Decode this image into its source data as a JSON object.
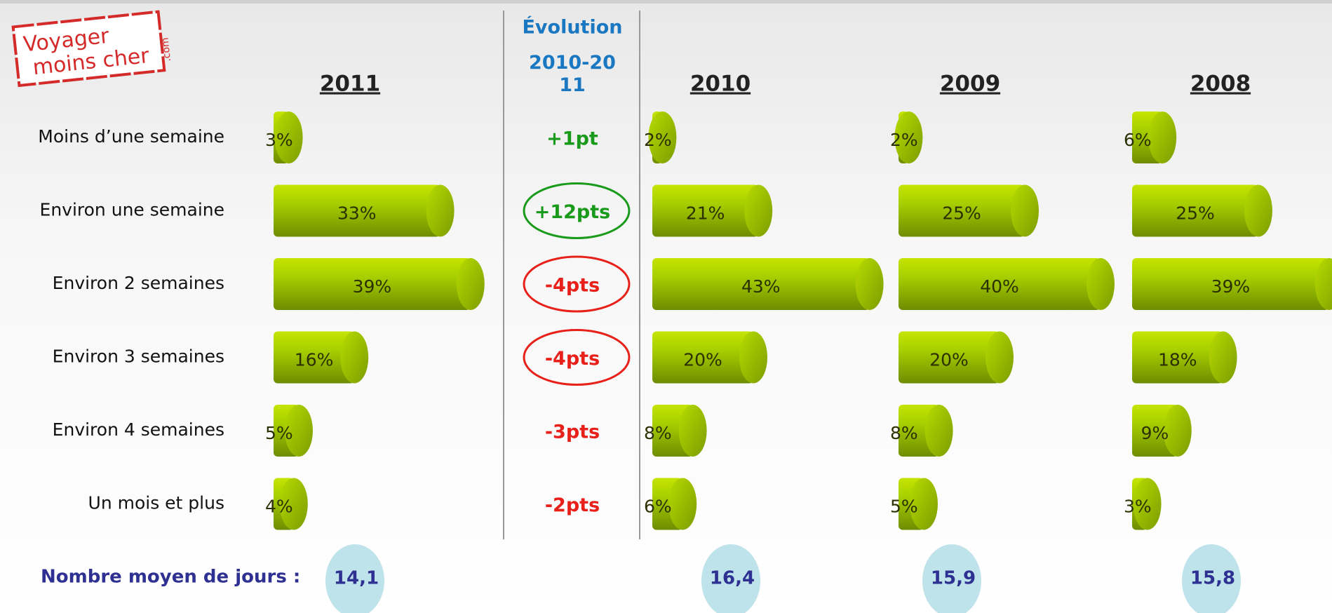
{
  "logo": {
    "line1": "Voyager",
    "line2": "moins cher",
    "suffix": ".com"
  },
  "chart_data": {
    "type": "bar",
    "orientation": "horizontal",
    "color": "#a8d000",
    "categories": [
      "Moins d’une semaine",
      "Environ une semaine",
      "Environ 2 semaines",
      "Environ 3 semaines",
      "Environ 4 semaines",
      "Un mois et plus"
    ],
    "series": [
      {
        "name": "2011",
        "values": [
          3,
          33,
          39,
          16,
          5,
          4
        ],
        "value_labels": [
          "3%",
          "33%",
          "39%",
          "16%",
          "5%",
          "4%"
        ],
        "average": 14.1,
        "average_label": "14,1"
      },
      {
        "name": "2010",
        "values": [
          2,
          21,
          43,
          20,
          8,
          6
        ],
        "value_labels": [
          "2%",
          "21%",
          "43%",
          "20%",
          "8%",
          "6%"
        ],
        "average": 16.4,
        "average_label": "16,4"
      },
      {
        "name": "2009",
        "values": [
          2,
          25,
          40,
          20,
          8,
          5
        ],
        "value_labels": [
          "2%",
          "25%",
          "40%",
          "20%",
          "8%",
          "5%"
        ],
        "average": 15.9,
        "average_label": "15,9"
      },
      {
        "name": "2008",
        "values": [
          6,
          25,
          39,
          18,
          9,
          3
        ],
        "value_labels": [
          "6%",
          "25%",
          "39%",
          "18%",
          "9%",
          "3%"
        ],
        "average": 15.8,
        "average_label": "15,8"
      }
    ],
    "evolution": {
      "title": "Évolution",
      "period": "2010-2011",
      "items": [
        {
          "label": "+1pt",
          "color": "#1a9a1a",
          "circled": false
        },
        {
          "label": "+12pts",
          "color": "#1a9a1a",
          "circled": true
        },
        {
          "label": "-4pts",
          "color": "#e8201a",
          "circled": true
        },
        {
          "label": "-4pts",
          "color": "#e8201a",
          "circled": true
        },
        {
          "label": "-3pts",
          "color": "#e8201a",
          "circled": false
        },
        {
          "label": "-2pts",
          "color": "#e8201a",
          "circled": false
        }
      ]
    },
    "average_title": "Nombre moyen de jours :"
  }
}
